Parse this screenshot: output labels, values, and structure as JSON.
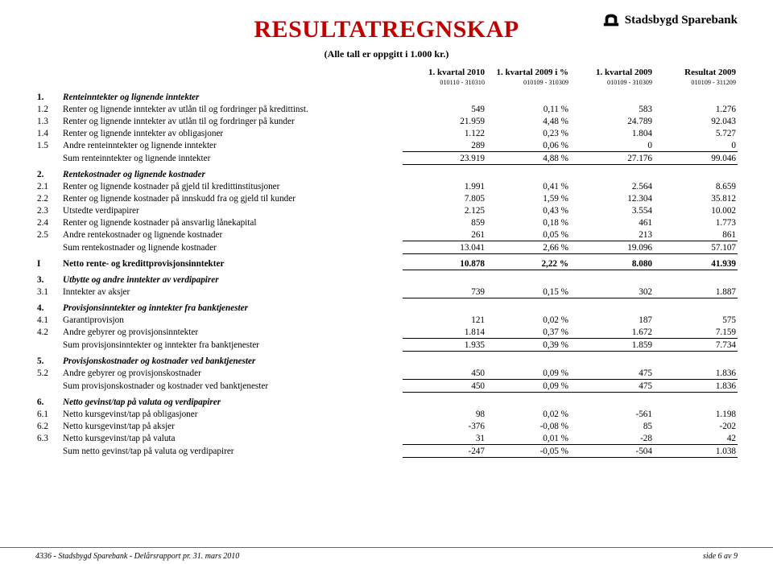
{
  "brand": {
    "name": "Stadsbygd Sparebank"
  },
  "title": "RESULTATREGNSKAP",
  "subtitle": "(Alle tall er oppgitt i 1.000 kr.)",
  "colors": {
    "title": "#c00000",
    "text": "#000000",
    "bg": "#ffffff",
    "rule": "#666666"
  },
  "columns": [
    {
      "h1": "1. kvartal 2010",
      "h2": "010110 - 310310"
    },
    {
      "h1": "1. kvartal 2009 i %",
      "h2": "010109 - 310309"
    },
    {
      "h1": "1. kvartal 2009",
      "h2": "010109 - 310309"
    },
    {
      "h1": "Resultat 2009",
      "h2": "010109 - 311209"
    }
  ],
  "sections": [
    {
      "num": "1.",
      "title": "Renteinntekter og lignende inntekter",
      "rows": [
        {
          "num": "1.2",
          "label": "Renter og lignende inntekter av utlån til og fordringer på kredittinst.",
          "v": [
            "549",
            "0,11 %",
            "583",
            "1.276"
          ]
        },
        {
          "num": "1.3",
          "label": "Renter og lignende inntekter av utlån til og fordringer på kunder",
          "v": [
            "21.959",
            "4,48 %",
            "24.789",
            "92.043"
          ]
        },
        {
          "num": "1.4",
          "label": "Renter og lignende inntekter av obligasjoner",
          "v": [
            "1.122",
            "0,23 %",
            "1.804",
            "5.727"
          ]
        },
        {
          "num": "1.5",
          "label": "Andre renteinntekter og lignende inntekter",
          "v": [
            "289",
            "0,06 %",
            "0",
            "0"
          ],
          "underline": true
        },
        {
          "num": "",
          "label": "Sum renteinntekter og lignende inntekter",
          "v": [
            "23.919",
            "4,88 %",
            "27.176",
            "99.046"
          ],
          "underline": true
        }
      ]
    },
    {
      "num": "2.",
      "title": "Rentekostnader og lignende kostnader",
      "rows": [
        {
          "num": "2.1",
          "label": "Renter og lignende kostnader på gjeld til kredittinstitusjoner",
          "v": [
            "1.991",
            "0,41 %",
            "2.564",
            "8.659"
          ]
        },
        {
          "num": "2.2",
          "label": "Renter og lignende kostnader på innskudd fra og gjeld til kunder",
          "v": [
            "7.805",
            "1,59 %",
            "12.304",
            "35.812"
          ]
        },
        {
          "num": "2.3",
          "label": "Utstedte verdipapirer",
          "v": [
            "2.125",
            "0,43 %",
            "3.554",
            "10.002"
          ]
        },
        {
          "num": "2.4",
          "label": "Renter og lignende kostnader på ansvarlig lånekapital",
          "v": [
            "859",
            "0,18 %",
            "461",
            "1.773"
          ]
        },
        {
          "num": "2.5",
          "label": "Andre rentekostnader og lignende kostnader",
          "v": [
            "261",
            "0,05 %",
            "213",
            "861"
          ],
          "underline": true
        },
        {
          "num": "",
          "label": "Sum rentekostnader og lignende kostnader",
          "v": [
            "13.041",
            "2,66 %",
            "19.096",
            "57.107"
          ],
          "underline": true
        }
      ]
    },
    {
      "netto": true,
      "num": "I",
      "label": "Netto rente- og kredittprovisjonsinntekter",
      "v": [
        "10.878",
        "2,22 %",
        "8.080",
        "41.939"
      ],
      "underline": true
    },
    {
      "num": "3.",
      "title": "Utbytte og andre inntekter av verdipapirer",
      "rows": [
        {
          "num": "3.1",
          "label": "Inntekter av aksjer",
          "v": [
            "739",
            "0,15 %",
            "302",
            "1.887"
          ],
          "underline": true
        }
      ]
    },
    {
      "num": "4.",
      "title": "Provisjonsinntekter og inntekter fra banktjenester",
      "rows": [
        {
          "num": "4.1",
          "label": "Garantiprovisjon",
          "v": [
            "121",
            "0,02 %",
            "187",
            "575"
          ]
        },
        {
          "num": "4.2",
          "label": "Andre gebyrer og provisjonsinntekter",
          "v": [
            "1.814",
            "0,37 %",
            "1.672",
            "7.159"
          ],
          "underline": true
        },
        {
          "num": "",
          "label": "Sum provisjonsinntekter og inntekter fra banktjenester",
          "v": [
            "1.935",
            "0,39 %",
            "1.859",
            "7.734"
          ],
          "underline": true
        }
      ]
    },
    {
      "num": "5.",
      "title": "Provisjonskostnader og kostnader ved banktjenester",
      "rows": [
        {
          "num": "5.2",
          "label": "Andre gebyrer og provisjonskostnader",
          "v": [
            "450",
            "0,09 %",
            "475",
            "1.836"
          ],
          "underline": true
        },
        {
          "num": "",
          "label": "Sum provisjonskostnader og kostnader ved banktjenester",
          "v": [
            "450",
            "0,09 %",
            "475",
            "1.836"
          ],
          "underline": true
        }
      ]
    },
    {
      "num": "6.",
      "title": "Netto gevinst/tap på valuta og verdipapirer",
      "rows": [
        {
          "num": "6.1",
          "label": "Netto kursgevinst/tap på obligasjoner",
          "v": [
            "98",
            "0,02 %",
            "-561",
            "1.198"
          ]
        },
        {
          "num": "6.2",
          "label": "Netto kursgevinst/tap på aksjer",
          "v": [
            "-376",
            "-0,08 %",
            "85",
            "-202"
          ]
        },
        {
          "num": "6.3",
          "label": "Netto kursgevinst/tap på valuta",
          "v": [
            "31",
            "0,01 %",
            "-28",
            "42"
          ],
          "underline": true
        },
        {
          "num": "",
          "label": "Sum netto gevinst/tap på valuta og verdipapirer",
          "v": [
            "-247",
            "-0,05 %",
            "-504",
            "1.038"
          ],
          "underline": true
        }
      ]
    }
  ],
  "footer": {
    "left": "4336  -  Stadsbygd Sparebank  -  Delårsrapport pr. 31. mars 2010",
    "right": "side 6 av 9"
  }
}
